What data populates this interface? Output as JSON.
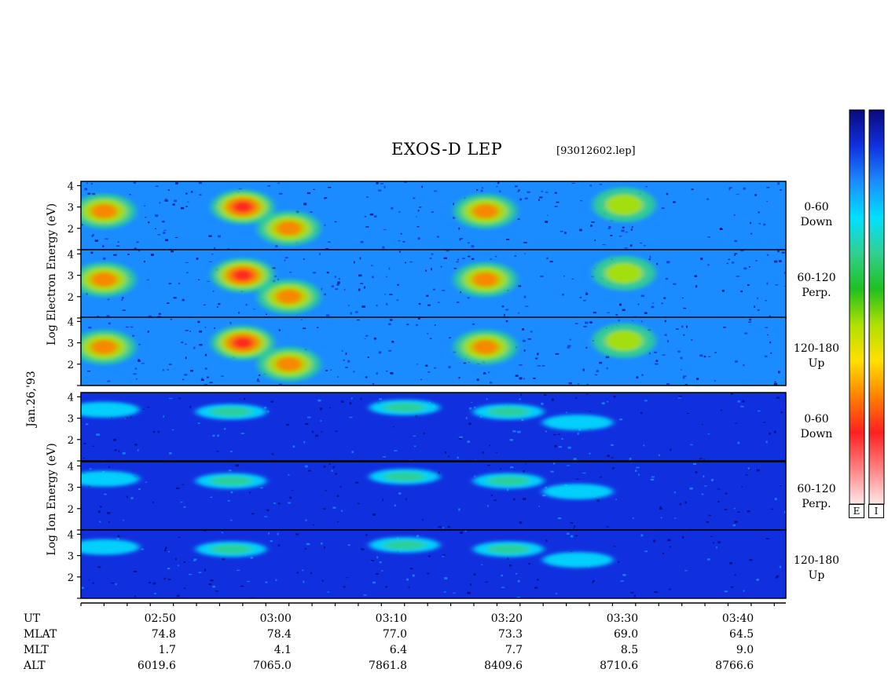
{
  "header": {
    "title": "EXOS-D LEP",
    "file_id": "[93012602.lep]"
  },
  "axis_labels": {
    "electron": "Log Electron Energy (eV)",
    "ion": "Log Ion Energy (eV)",
    "date": "Jan.26,'93"
  },
  "panels": [
    {
      "species": "electron",
      "pitch": "0-60",
      "dir": "Down"
    },
    {
      "species": "electron",
      "pitch": "60-120",
      "dir": "Perp."
    },
    {
      "species": "electron",
      "pitch": "120-180",
      "dir": "Up"
    },
    {
      "species": "ion",
      "pitch": "0-60",
      "dir": "Down"
    },
    {
      "species": "ion",
      "pitch": "60-120",
      "dir": "Perp."
    },
    {
      "species": "ion",
      "pitch": "120-180",
      "dir": "Up"
    }
  ],
  "colorbar": {
    "labels": [
      "E",
      "I"
    ],
    "colors": [
      "#0a0a7a",
      "#1030e0",
      "#1a8cff",
      "#00e0ff",
      "#30d090",
      "#20c020",
      "#b0e000",
      "#ffe000",
      "#ff8000",
      "#ff2020",
      "#ff8080",
      "#ffe8e8"
    ]
  },
  "axis_row": {
    "labels": [
      "UT",
      "MLAT",
      "MLT",
      "ALT"
    ],
    "columns": [
      {
        "UT": "02:50",
        "MLAT": "74.8",
        "MLT": "1.7",
        "ALT": "6019.6"
      },
      {
        "UT": "03:00",
        "MLAT": "78.4",
        "MLT": "4.1",
        "ALT": "7065.0"
      },
      {
        "UT": "03:10",
        "MLAT": "77.0",
        "MLT": "6.4",
        "ALT": "7861.8"
      },
      {
        "UT": "03:20",
        "MLAT": "73.3",
        "MLT": "7.7",
        "ALT": "8409.6"
      },
      {
        "UT": "03:30",
        "MLAT": "69.0",
        "MLT": "8.5",
        "ALT": "8710.6"
      },
      {
        "UT": "03:40",
        "MLAT": "64.5",
        "MLT": "9.0",
        "ALT": "8766.6"
      }
    ]
  },
  "chart_data": {
    "type": "heatmap",
    "title": "EXOS-D LEP",
    "xlabel": "UT",
    "x_ticks": [
      "02:50",
      "03:00",
      "03:10",
      "03:20",
      "03:30",
      "03:40"
    ],
    "xlim": [
      "02:43",
      "03:44"
    ],
    "ylabel_electron": "Log Electron Energy (eV)",
    "ylabel_ion": "Log Ion Energy (eV)",
    "y_ticks": [
      2,
      3,
      4
    ],
    "ylim": [
      1,
      4.2
    ],
    "colorscale": [
      "#0a0a7a",
      "#1030e0",
      "#1a8cff",
      "#00e0ff",
      "#30d090",
      "#20c020",
      "#b0e000",
      "#ffe000",
      "#ff8000",
      "#ff2020",
      "#ff8080",
      "#ffe8e8"
    ],
    "electron_features": [
      {
        "ut": "02:45",
        "center": 2.8,
        "intensity": 0.8
      },
      {
        "ut": "02:57",
        "center": 3.0,
        "intensity": 1.0
      },
      {
        "ut": "03:01",
        "center": 2.0,
        "intensity": 0.8
      },
      {
        "ut": "03:18",
        "center": 2.8,
        "intensity": 0.75
      },
      {
        "ut": "03:30",
        "center": 3.1,
        "intensity": 0.45
      }
    ],
    "ion_features": [
      {
        "ut": "02:45",
        "center": 3.4,
        "intensity": 0.3
      },
      {
        "ut": "02:56",
        "center": 3.3,
        "intensity": 0.55
      },
      {
        "ut": "03:11",
        "center": 3.5,
        "intensity": 0.5
      },
      {
        "ut": "03:20",
        "center": 3.3,
        "intensity": 0.6
      },
      {
        "ut": "03:26",
        "center": 2.8,
        "intensity": 0.35
      }
    ]
  }
}
